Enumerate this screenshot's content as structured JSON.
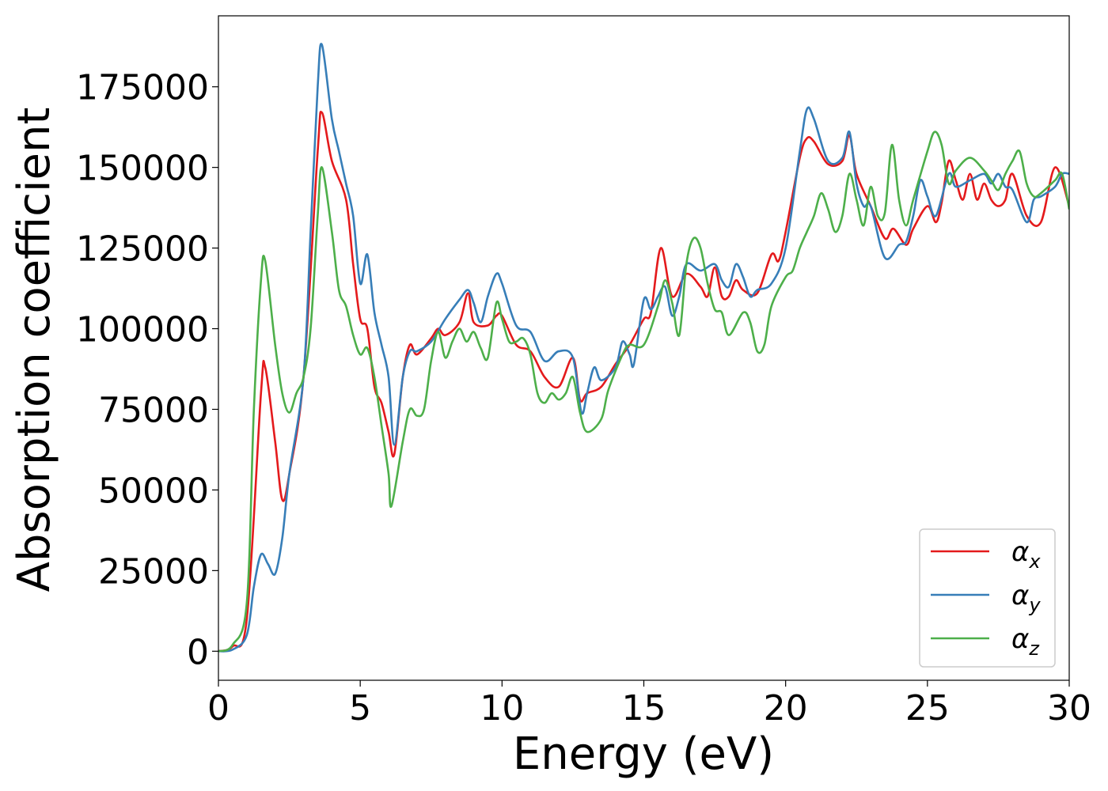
{
  "chart_data": {
    "type": "line",
    "xlabel": "Energy (eV)",
    "ylabel": "Absorption coefficient",
    "xlim": [
      0,
      30
    ],
    "ylim": [
      -9000,
      197000
    ],
    "xticks": [
      0,
      5,
      10,
      15,
      20,
      25,
      30
    ],
    "yticks": [
      0,
      25000,
      50000,
      75000,
      100000,
      125000,
      150000,
      175000
    ],
    "legend": "lower right",
    "series": [
      {
        "name": "αx",
        "color": "#e41a1c",
        "x": [
          0,
          0.5,
          1.0,
          1.5,
          1.65,
          2.0,
          2.25,
          2.5,
          3.0,
          3.5,
          3.65,
          4.0,
          4.5,
          4.75,
          5.0,
          5.25,
          5.5,
          5.75,
          6.0,
          6.2,
          6.5,
          6.75,
          7.0,
          7.5,
          7.75,
          8.0,
          8.5,
          8.8,
          9.0,
          9.5,
          9.8,
          10.0,
          10.5,
          11.0,
          11.5,
          12.0,
          12.5,
          12.75,
          13.0,
          13.5,
          14.0,
          14.5,
          15.0,
          15.25,
          15.6,
          16.0,
          16.5,
          17.0,
          17.25,
          17.5,
          17.75,
          18.0,
          18.25,
          18.5,
          19.0,
          19.5,
          19.75,
          20.0,
          20.5,
          20.75,
          21.0,
          21.5,
          22.0,
          22.25,
          22.5,
          23.0,
          23.5,
          23.8,
          24.25,
          24.5,
          25.0,
          25.3,
          25.5,
          25.75,
          26.0,
          26.25,
          26.5,
          26.75,
          27.0,
          27.25,
          27.5,
          27.75,
          28.0,
          28.5,
          29.0,
          29.5,
          30.0
        ],
        "values": [
          0,
          1500,
          10000,
          80000,
          88000,
          65000,
          47000,
          55000,
          85000,
          155000,
          167000,
          152000,
          140000,
          120000,
          103000,
          100000,
          82000,
          77000,
          68000,
          61000,
          85000,
          95000,
          92000,
          97000,
          100000,
          98000,
          102000,
          111000,
          102000,
          101000,
          104000,
          104000,
          95000,
          93000,
          85000,
          82000,
          91000,
          78000,
          80000,
          82000,
          89000,
          95000,
          103000,
          105000,
          125000,
          110000,
          117000,
          113000,
          110000,
          119000,
          110000,
          110000,
          115000,
          112000,
          111000,
          123000,
          121000,
          130000,
          153000,
          159000,
          158000,
          151000,
          152000,
          160000,
          148000,
          138000,
          128000,
          131000,
          126000,
          131000,
          138000,
          133000,
          139000,
          152000,
          146000,
          140000,
          148000,
          140000,
          145000,
          140000,
          138000,
          140000,
          148000,
          135000,
          133000,
          150000,
          138000
        ]
      },
      {
        "name": "αy",
        "color": "#377eb8",
        "x": [
          0,
          0.5,
          1.0,
          1.25,
          1.5,
          1.75,
          2.0,
          2.25,
          2.5,
          3.0,
          3.25,
          3.5,
          3.65,
          4.0,
          4.25,
          4.5,
          4.75,
          5.0,
          5.25,
          5.5,
          5.75,
          6.0,
          6.2,
          6.5,
          6.75,
          7.0,
          7.5,
          8.0,
          8.5,
          8.8,
          9.0,
          9.25,
          9.5,
          9.8,
          10.0,
          10.5,
          11.0,
          11.5,
          12.0,
          12.5,
          12.8,
          13.0,
          13.25,
          13.5,
          14.0,
          14.25,
          14.5,
          14.65,
          15.0,
          15.25,
          15.5,
          15.75,
          16.0,
          16.25,
          16.5,
          17.0,
          17.5,
          17.75,
          18.0,
          18.25,
          18.5,
          18.75,
          19.0,
          19.5,
          20.0,
          20.5,
          20.75,
          21.0,
          21.5,
          22.0,
          22.25,
          22.5,
          22.75,
          23.0,
          23.5,
          24.0,
          24.25,
          24.5,
          24.75,
          25.0,
          25.3,
          25.75,
          26.0,
          26.5,
          27.0,
          27.25,
          27.5,
          27.75,
          28.0,
          28.5,
          28.75,
          29.0,
          29.5,
          29.75,
          30.0
        ],
        "values": [
          0,
          500,
          5000,
          20000,
          30000,
          27000,
          24000,
          35000,
          55000,
          85000,
          130000,
          175000,
          188000,
          165000,
          155000,
          145000,
          135000,
          114000,
          123000,
          105000,
          95000,
          85000,
          64000,
          85000,
          93000,
          93000,
          96000,
          103000,
          109000,
          112000,
          108000,
          102000,
          110000,
          117000,
          114000,
          101000,
          99000,
          90000,
          93000,
          91000,
          74000,
          80000,
          88000,
          84000,
          88000,
          96000,
          92000,
          89000,
          109000,
          106000,
          110000,
          113000,
          104000,
          110000,
          120000,
          118000,
          120000,
          115000,
          113000,
          120000,
          116000,
          110000,
          112000,
          114000,
          125000,
          155000,
          168000,
          165000,
          152000,
          153000,
          161000,
          145000,
          138000,
          138000,
          122000,
          126000,
          127000,
          135000,
          146000,
          141000,
          135000,
          148000,
          144000,
          146000,
          148000,
          145000,
          148000,
          144000,
          143000,
          133000,
          140000,
          141000,
          144000,
          148000,
          148000
        ]
      },
      {
        "name": "αz",
        "color": "#4daf4a",
        "x": [
          0,
          0.5,
          1.0,
          1.25,
          1.5,
          1.65,
          2.0,
          2.25,
          2.5,
          2.75,
          3.0,
          3.25,
          3.5,
          3.65,
          4.0,
          4.25,
          4.5,
          4.75,
          5.0,
          5.25,
          5.5,
          5.75,
          6.0,
          6.1,
          6.5,
          6.75,
          7.0,
          7.25,
          7.5,
          7.75,
          8.0,
          8.25,
          8.5,
          8.75,
          9.0,
          9.25,
          9.5,
          9.8,
          10.0,
          10.25,
          10.5,
          10.75,
          11.0,
          11.25,
          11.5,
          11.75,
          12.0,
          12.25,
          12.5,
          12.75,
          13.0,
          13.5,
          13.75,
          14.25,
          14.5,
          15.0,
          15.5,
          15.75,
          16.0,
          16.25,
          16.5,
          16.75,
          17.0,
          17.25,
          17.5,
          17.75,
          18.0,
          18.5,
          18.75,
          19.0,
          19.25,
          19.5,
          20.0,
          20.25,
          20.5,
          20.75,
          21.0,
          21.25,
          21.5,
          21.75,
          22.0,
          22.25,
          22.5,
          22.75,
          23.0,
          23.25,
          23.5,
          23.75,
          24.0,
          24.25,
          24.5,
          25.0,
          25.25,
          25.5,
          25.75,
          26.0,
          26.5,
          27.0,
          27.25,
          27.5,
          27.75,
          28.0,
          28.25,
          28.5,
          28.75,
          29.0,
          29.5,
          29.75,
          30.0
        ],
        "values": [
          0,
          2000,
          15000,
          75000,
          115000,
          121000,
          95000,
          80000,
          74000,
          80000,
          85000,
          100000,
          135000,
          150000,
          130000,
          112000,
          107000,
          98000,
          92000,
          94000,
          85000,
          70000,
          55000,
          45000,
          65000,
          75000,
          73000,
          75000,
          90000,
          99000,
          91000,
          96000,
          100000,
          96000,
          99000,
          94000,
          91000,
          108000,
          103000,
          96000,
          96000,
          97000,
          92000,
          80000,
          77000,
          80000,
          78000,
          80000,
          85000,
          74000,
          68000,
          72000,
          81000,
          92000,
          95000,
          95000,
          107000,
          115000,
          108000,
          98000,
          120000,
          128000,
          125000,
          114000,
          106000,
          105000,
          98000,
          105000,
          102000,
          93000,
          95000,
          107000,
          116000,
          118000,
          125000,
          130000,
          135000,
          142000,
          137000,
          130000,
          135000,
          148000,
          140000,
          132000,
          144000,
          135000,
          136000,
          157000,
          140000,
          132000,
          140000,
          155000,
          161000,
          157000,
          145000,
          149000,
          153000,
          149000,
          146000,
          143000,
          148000,
          152000,
          155000,
          145000,
          141000,
          142000,
          146000,
          148000,
          137000
        ]
      }
    ]
  }
}
